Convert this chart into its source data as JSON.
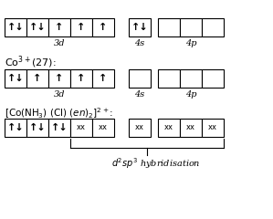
{
  "bg_color": "#ffffff",
  "row1_3d": [
    "↑↓",
    "↑↓",
    "↑",
    "↑",
    "↑"
  ],
  "row1_4s": [
    "↑↓"
  ],
  "row1_4p": [
    "",
    "",
    ""
  ],
  "row2_3d": [
    "↑↓",
    "↑",
    "↑",
    "↑",
    "↑"
  ],
  "row2_4s": [
    ""
  ],
  "row2_4p": [
    "",
    "",
    ""
  ],
  "row3_3d": [
    "↑↓",
    "↑↓",
    "↑↓",
    "xx",
    "xx"
  ],
  "row3_4s": [
    "xx"
  ],
  "row3_4p": [
    "xx",
    "xx",
    "xx"
  ],
  "label_3d": "3d",
  "label_4s": "4s",
  "label_4p": "4p",
  "co_label": "Co$^{3+}$(27):",
  "complex_label": "[Co(NH$_3$) (Cl) ($\\it{en}$)$_2$]$^{2+}$:",
  "hybridisation_text": "$d^2sp^3$ hybridisation"
}
